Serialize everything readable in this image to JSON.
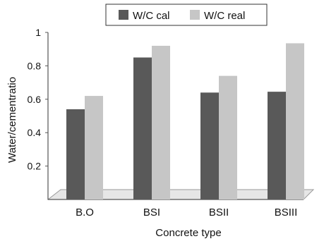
{
  "chart_data": {
    "type": "bar",
    "title": "",
    "xlabel": "Concrete type",
    "ylabel": "Water/cementratio",
    "categories": [
      "B.O",
      "BSI",
      "BSII",
      "BSIII"
    ],
    "series": [
      {
        "name": "W/C cal",
        "values": [
          0.54,
          0.85,
          0.64,
          0.645
        ],
        "color": "#595959"
      },
      {
        "name": "W/C real",
        "values": [
          0.62,
          0.92,
          0.74,
          0.935
        ],
        "color": "#c6c6c6"
      }
    ],
    "y_ticks": [
      "0.2",
      "0.4",
      "0.6",
      "0.8",
      "1"
    ],
    "ylim": [
      0,
      1
    ],
    "grid": false,
    "legend_position": "top-right",
    "floor_color": "#e6e6e6",
    "axis_color": "#555555"
  }
}
